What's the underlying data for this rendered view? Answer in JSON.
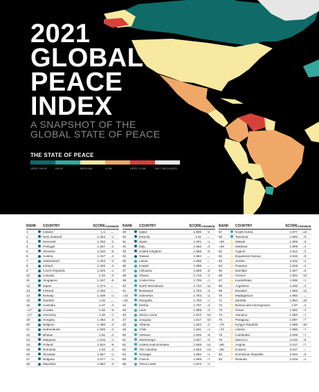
{
  "title": {
    "line1": "2021",
    "line2": "GLOBAL",
    "line3": "PEACE",
    "line4": "INDEX"
  },
  "subtitle": {
    "line1": "A SNAPSHOT OF THE",
    "line2": "GLOBAL STATE OF PEACE"
  },
  "legend": {
    "title": "THE STATE OF PEACE",
    "items": [
      {
        "label": "VERY HIGH",
        "color": "#0f6b67"
      },
      {
        "label": "HIGH",
        "color": "#35a79c"
      },
      {
        "label": "MEDIUM",
        "color": "#f7e9a0"
      },
      {
        "label": "LOW",
        "color": "#f0a868"
      },
      {
        "label": "VERY LOW",
        "color": "#d6413a"
      },
      {
        "label": "NOT INCLUDED",
        "color": "#e6e6e6"
      }
    ]
  },
  "table": {
    "headers": {
      "rank": "RANK",
      "country": "COUNTRY",
      "score": "SCORE",
      "change": "CHANGE"
    },
    "columns": [
      [
        {
          "rank": "1",
          "country": "Iceland",
          "score": "1.1",
          "change": "↔",
          "level": 0
        },
        {
          "rank": "2",
          "country": "New Zealand",
          "score": "1.253",
          "change": "↑1",
          "level": 0
        },
        {
          "rank": "3",
          "country": "Denmark",
          "score": "1.256",
          "change": "↑2",
          "level": 0
        },
        {
          "rank": "4",
          "country": "Portugal",
          "score": "1.267",
          "change": "↓2",
          "level": 0
        },
        {
          "rank": "5",
          "country": "Slovenia",
          "score": "1.315",
          "change": "↑5",
          "level": 0
        },
        {
          "rank": "6",
          "country": "Austria",
          "score": "1.317",
          "change": "↓2",
          "level": 0
        },
        {
          "rank": "7",
          "country": "Switzerland",
          "score": "1.323",
          "change": "↑2",
          "level": 0
        },
        {
          "rank": "8",
          "country": "Ireland",
          "score": "1.326",
          "change": "↑3",
          "level": 0
        },
        {
          "rank": "9",
          "country": "Czech Republic",
          "score": "1.329",
          "change": "↓1",
          "level": 0
        },
        {
          "rank": "10",
          "country": "Canada",
          "score": "1.33",
          "change": "↓3",
          "level": 0
        },
        {
          "rank": "11",
          "country": "Singapore",
          "score": "1.347",
          "change": "↓5",
          "level": 0
        },
        {
          "rank": "12",
          "country": "Japan",
          "score": "1.373",
          "change": "↔",
          "level": 0
        },
        {
          "rank": "13",
          "country": "Finland",
          "score": "1.402",
          "change": "↔",
          "level": 0
        },
        {
          "rank": "14",
          "country": "Norway",
          "score": "1.438",
          "change": "↑1",
          "level": 0
        },
        {
          "rank": "15",
          "country": "Sweden",
          "score": "1.46",
          "change": "↔",
          "level": 0
        },
        {
          "rank": "16",
          "country": "Australia",
          "score": "1.47",
          "change": "↓2",
          "level": 0
        },
        {
          "rank": "=17",
          "country": "Croatia",
          "score": "1.48",
          "change": "↑6",
          "level": 0
        },
        {
          "rank": "=17",
          "country": "Germany",
          "score": "1.48",
          "change": "↑1",
          "level": 0
        },
        {
          "rank": "19",
          "country": "Hungary",
          "score": "1.494",
          "change": "↓3",
          "level": 0
        },
        {
          "rank": "20",
          "country": "Belgium",
          "score": "1.496",
          "change": "↓3",
          "level": 0
        },
        {
          "rank": "21",
          "country": "Netherlands",
          "score": "1.506",
          "change": "↓2",
          "level": 0
        },
        {
          "rank": "22",
          "country": "Bhutan",
          "score": "1.51",
          "change": "↓2",
          "level": 0
        },
        {
          "rank": "23",
          "country": "Malaysia",
          "score": "1.515",
          "change": "↑1",
          "level": 0
        },
        {
          "rank": "24",
          "country": "Poland",
          "score": "1.524",
          "change": "↑9",
          "level": 0
        },
        {
          "rank": "25",
          "country": "Romania",
          "score": "1.53",
          "change": "↓4",
          "level": 0
        },
        {
          "rank": "26",
          "country": "Slovakia",
          "score": "1.557",
          "change": "↑1",
          "level": 0
        },
        {
          "rank": "27",
          "country": "Bulgaria",
          "score": "1.577",
          "change": "↑1",
          "level": 0
        },
        {
          "rank": "28",
          "country": "Mauritius",
          "score": "1.592",
          "change": "↓3",
          "level": 0
        }
      ],
      [
        {
          "rank": "29",
          "country": "Qatar",
          "score": "1.605",
          "change": "↑2",
          "level": 0
        },
        {
          "rank": "30",
          "country": "Estonia",
          "score": "1.61",
          "change": "↔",
          "level": 0
        },
        {
          "rank": "31",
          "country": "Spain",
          "score": "1.621",
          "change": "↑1",
          "level": 0
        },
        {
          "rank": "32",
          "country": "Italy",
          "score": "1.652",
          "change": "↓3",
          "level": 0
        },
        {
          "rank": "33",
          "country": "United Kingdom",
          "score": "1.658",
          "change": "↑6",
          "level": 0
        },
        {
          "rank": "34",
          "country": "Taiwan",
          "score": "1.662",
          "change": "↔",
          "level": 0
        },
        {
          "rank": "35",
          "country": "Latvia",
          "score": "1.686",
          "change": "↔",
          "level": 1
        },
        {
          "rank": "36",
          "country": "Kuwait",
          "score": "1.686",
          "change": "↔",
          "level": 1
        },
        {
          "rank": "37",
          "country": "Lithuania",
          "score": "1.689",
          "change": "↓6",
          "level": 1
        },
        {
          "rank": "38",
          "country": "Ghana",
          "score": "1.715",
          "change": "↑2",
          "level": 1
        },
        {
          "rank": "39",
          "country": "Costa Rica",
          "score": "1.735",
          "change": "↓1",
          "level": 1
        },
        {
          "rank": "40",
          "country": "North Macedonia",
          "score": "1.744",
          "change": "↑11",
          "level": 1
        },
        {
          "rank": "41",
          "country": "Botswana",
          "score": "1.753",
          "change": "↓2",
          "level": 1
        },
        {
          "rank": "=42",
          "country": "Indonesia",
          "score": "1.783",
          "change": "↑2",
          "level": 1
        },
        {
          "rank": "=42",
          "country": "Mongolia",
          "score": "1.783",
          "change": "↑1",
          "level": 1
        },
        {
          "rank": "44",
          "country": "Serbia",
          "score": "1.797",
          "change": "↓3",
          "level": 1
        },
        {
          "rank": "45",
          "country": "Laos",
          "score": "1.809",
          "change": "↓3",
          "level": 1
        },
        {
          "rank": "46",
          "country": "Sierra Leone",
          "score": "1.813",
          "change": "↑10",
          "level": 1
        },
        {
          "rank": "47",
          "country": "Uruguay",
          "score": "1.817",
          "change": "↑10",
          "level": 1
        },
        {
          "rank": "48",
          "country": "Albania",
          "score": "1.824",
          "change": "↓2",
          "level": 1
        },
        {
          "rank": "49",
          "country": "Chile",
          "score": "1.831",
          "change": "↑1",
          "level": 1
        },
        {
          "rank": "50",
          "country": "Vietnam",
          "score": "1.835",
          "change": "↑9",
          "level": 1
        },
        {
          "rank": "51",
          "country": "Montenegro",
          "score": "1.847",
          "change": "↑3",
          "level": 1
        },
        {
          "rank": "52",
          "country": "United Arab Emirates",
          "score": "1.848",
          "change": "↑12",
          "level": 1
        },
        {
          "rank": "53",
          "country": "The Gambia",
          "score": "1.853",
          "change": "↑13",
          "level": 1
        },
        {
          "rank": "54",
          "country": "Senegal",
          "score": "1.864",
          "change": "↑1",
          "level": 1
        },
        {
          "rank": "55",
          "country": "France",
          "score": "1.868",
          "change": "↑7",
          "level": 1
        },
        {
          "rank": "56",
          "country": "Timor-Leste",
          "score": "1.873",
          "change": "↓4",
          "level": 1
        }
      ],
      [
        {
          "rank": "57",
          "country": "South Korea",
          "score": "1.877",
          "change": "↓12",
          "level": 1
        },
        {
          "rank": "58",
          "country": "Tanzania",
          "score": "1.892",
          "change": "↓9",
          "level": 1
        },
        {
          "rank": "=59",
          "country": "Malawi",
          "score": "1.909",
          "change": "↓6",
          "level": 2
        },
        {
          "rank": "=59",
          "country": "Moldova",
          "score": "1.909",
          "change": "↓4",
          "level": 2
        },
        {
          "rank": "61",
          "country": "Cyprus",
          "score": "1.912",
          "change": "↓3",
          "level": 2
        },
        {
          "rank": "62",
          "country": "Equatorial Guinea",
          "score": "1.915",
          "change": "↓9",
          "level": 2
        },
        {
          "rank": "63",
          "country": "Jordan",
          "score": "1.916",
          "change": "↑4",
          "level": 2
        },
        {
          "rank": "64",
          "country": "Panama",
          "score": "1.919",
          "change": "↓3",
          "level": 2
        },
        {
          "rank": "65",
          "country": "Namibia",
          "score": "1.927",
          "change": "↓5",
          "level": 2
        },
        {
          "rank": "66",
          "country": "Greece",
          "score": "1.932",
          "change": "↑10",
          "level": 2
        },
        {
          "rank": "67",
          "country": "Kazakhstan",
          "score": "1.936",
          "change": "↑1",
          "level": 2
        },
        {
          "rank": "68",
          "country": "Argentina",
          "score": "1.945",
          "change": "↓3",
          "level": 2
        },
        {
          "rank": "69",
          "country": "Eswatini",
          "score": "1.955",
          "change": "↑12",
          "level": 2
        },
        {
          "rank": "70",
          "country": "Madagascar",
          "score": "1.963",
          "change": "↔",
          "level": 2
        },
        {
          "rank": "71",
          "country": "Zambia",
          "score": "1.964",
          "change": "↓24",
          "level": 2
        },
        {
          "rank": "72",
          "country": "Bosnia and Herzegovina",
          "score": "1.97",
          "change": "↓2",
          "level": 2
        },
        {
          "rank": "73",
          "country": "Oman",
          "score": "1.982",
          "change": "↑2",
          "level": 2
        },
        {
          "rank": "74",
          "country": "Jamaica",
          "score": "1.992",
          "change": "↓1",
          "level": 2
        },
        {
          "rank": "75",
          "country": "Paraguay",
          "score": "1.997",
          "change": "↑7",
          "level": 2
        },
        {
          "rank": "=76",
          "country": "Kyrgyz Republic",
          "score": "1.998",
          "change": "↑20",
          "level": 2
        },
        {
          "rank": "=76",
          "country": "Liberia",
          "score": "1.998",
          "change": "↑7",
          "level": 2
        },
        {
          "rank": "78",
          "country": "Cambodia",
          "score": "2.008",
          "change": "↑7",
          "level": 2
        },
        {
          "rank": "79",
          "country": "Morocco",
          "score": "2.015",
          "change": "↑9",
          "level": 2
        },
        {
          "rank": "=80",
          "country": "Angola",
          "score": "2.017",
          "change": "↑7",
          "level": 2
        },
        {
          "rank": "=80",
          "country": "Kosovo",
          "score": "2.017",
          "change": "↔",
          "level": 2
        },
        {
          "rank": "82",
          "country": "Dominican Republic",
          "score": "2.024",
          "change": "↓5",
          "level": 2
        },
        {
          "rank": "83",
          "country": "Rwanda",
          "score": "2.028",
          "change": "↓4",
          "level": 2
        }
      ]
    ]
  }
}
